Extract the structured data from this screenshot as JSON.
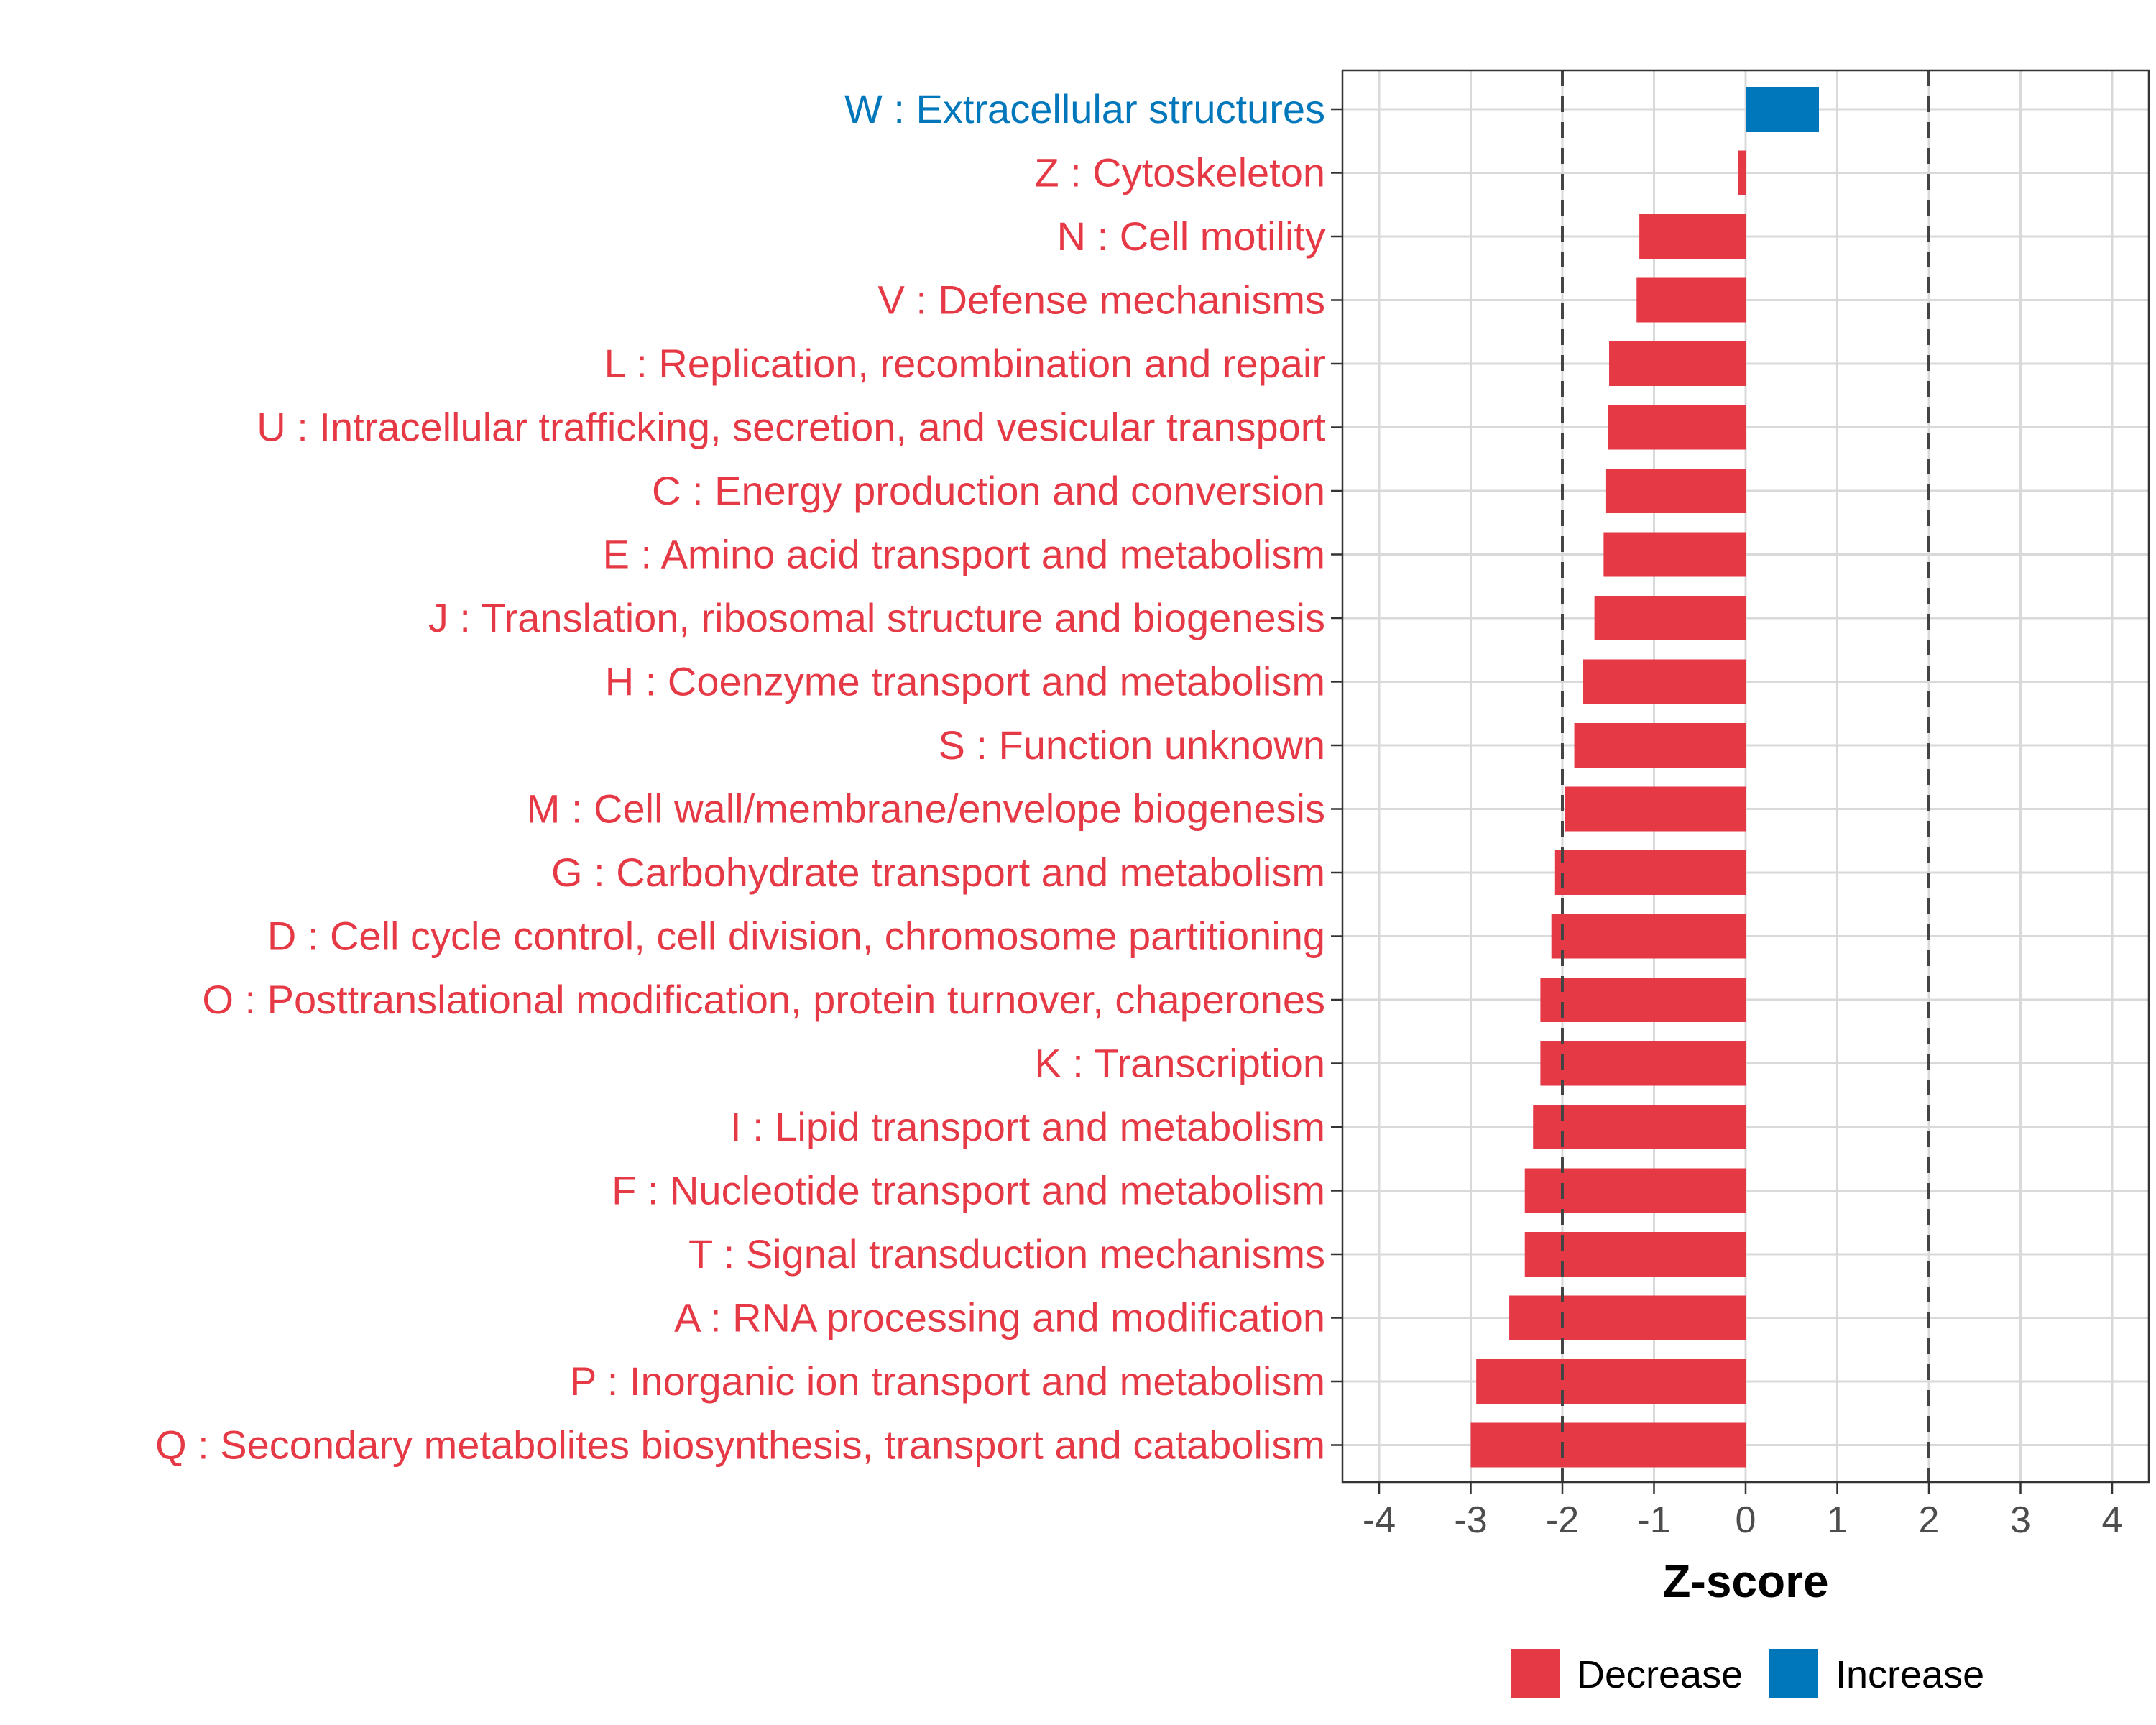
{
  "chart_data": {
    "type": "bar",
    "orientation": "horizontal",
    "xlabel": "Z-score",
    "xlim": [
      -4.4,
      4.4
    ],
    "xticks": [
      -4,
      -3,
      -2,
      -1,
      0,
      1,
      2,
      3,
      4
    ],
    "reference_lines": [
      -2,
      2
    ],
    "colors": {
      "Decrease": "#E63946",
      "Increase": "#0077BB"
    },
    "legend": {
      "position": "bottom",
      "entries": [
        "Decrease",
        "Increase"
      ]
    },
    "categories": [
      "W : Extracellular structures",
      "Z : Cytoskeleton",
      "N : Cell motility",
      "V : Defense mechanisms",
      "L : Replication, recombination and repair",
      "U : Intracellular trafficking, secretion, and vesicular transport",
      "C : Energy production and conversion",
      "E : Amino acid transport and metabolism",
      "J : Translation, ribosomal structure and biogenesis",
      "H : Coenzyme transport and metabolism",
      "S : Function unknown",
      "M : Cell wall/membrane/envelope biogenesis",
      "G : Carbohydrate transport and metabolism",
      "D : Cell cycle control, cell division, chromosome partitioning",
      "O : Posttranslational modification, protein turnover, chaperones",
      "K : Transcription",
      "I : Lipid transport and metabolism",
      "F : Nucleotide transport and metabolism",
      "T : Signal transduction mechanisms",
      "A : RNA processing and modification",
      "P : Inorganic ion transport and metabolism",
      "Q : Secondary metabolites biosynthesis, transport and catabolism"
    ],
    "values": [
      0.8,
      -0.08,
      -1.16,
      -1.19,
      -1.49,
      -1.5,
      -1.53,
      -1.55,
      -1.65,
      -1.78,
      -1.87,
      -1.97,
      -2.08,
      -2.12,
      -2.24,
      -2.24,
      -2.32,
      -2.41,
      -2.41,
      -2.58,
      -2.94,
      -3.0
    ],
    "direction": [
      "Increase",
      "Decrease",
      "Decrease",
      "Decrease",
      "Decrease",
      "Decrease",
      "Decrease",
      "Decrease",
      "Decrease",
      "Decrease",
      "Decrease",
      "Decrease",
      "Decrease",
      "Decrease",
      "Decrease",
      "Decrease",
      "Decrease",
      "Decrease",
      "Decrease",
      "Decrease",
      "Decrease",
      "Decrease"
    ]
  }
}
